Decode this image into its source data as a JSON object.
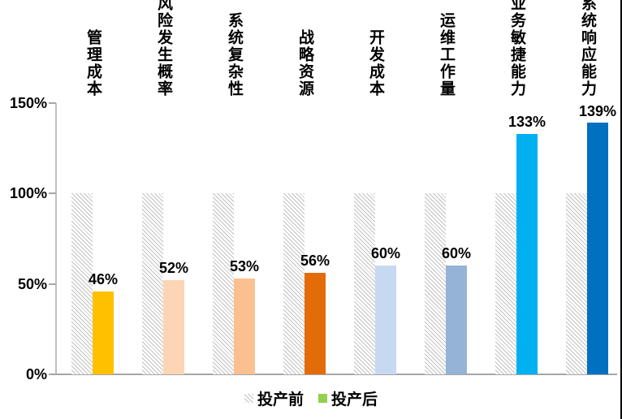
{
  "chart_data": {
    "type": "bar",
    "categories": [
      "管理成本",
      "风险发生概率",
      "系统复杂性",
      "战略资源",
      "开发成本",
      "运维工作量",
      "业务敏捷能力",
      "系统响应能力"
    ],
    "series": [
      {
        "name": "投产前",
        "values": [
          100,
          100,
          100,
          100,
          100,
          100,
          100,
          100
        ],
        "style": "hatched-gray"
      },
      {
        "name": "投产后",
        "values": [
          46,
          52,
          53,
          56,
          60,
          60,
          133,
          139
        ],
        "colors": [
          "#FFC000",
          "#FCD5B4",
          "#FAC090",
          "#E36C09",
          "#C6D9F1",
          "#95B3D7",
          "#00B0F0",
          "#0070C0"
        ]
      }
    ],
    "data_labels": [
      "46%",
      "52%",
      "53%",
      "56%",
      "60%",
      "60%",
      "133%",
      "139%"
    ],
    "y_ticks": {
      "labels": [
        "0%",
        "50%",
        "100%",
        "150%"
      ],
      "values": [
        0,
        50,
        100,
        150
      ]
    },
    "ylim": [
      0,
      150
    ],
    "grid": false,
    "legend_position": "bottom",
    "title": ""
  },
  "legend": {
    "before_label": "投产前",
    "after_label": "投产后",
    "before_swatch_style": "hatched-gray",
    "after_swatch_color": "#92D050"
  },
  "colors": {
    "hatch_gray": "#c2c2c2",
    "axis_gray": "#a6a6a6",
    "axis_light_gray": "#bfbfbf",
    "text": "#000000",
    "background": "#ffffff"
  }
}
